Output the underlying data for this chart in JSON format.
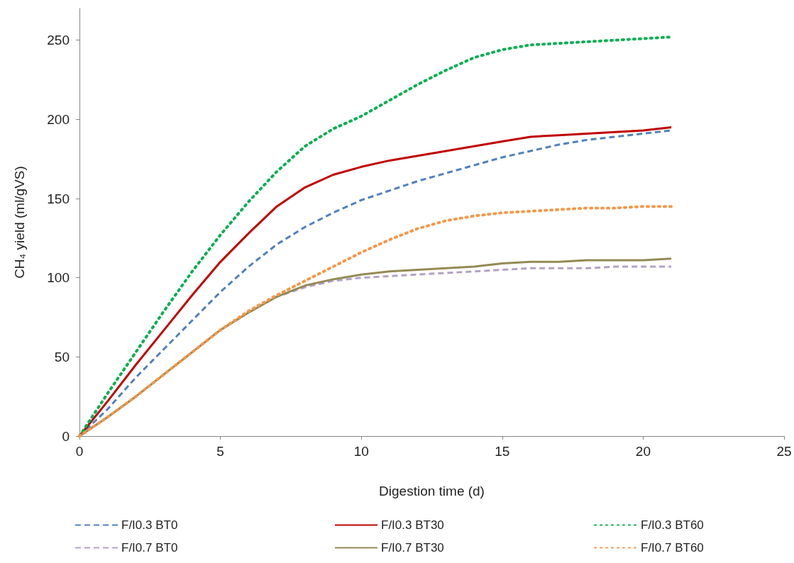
{
  "chart_data": {
    "type": "line",
    "xlabel": "Digestion time (d)",
    "ylabel": "CH₄ yield (ml/gVS)",
    "x": [
      0,
      1,
      2,
      3,
      4,
      5,
      6,
      7,
      8,
      9,
      10,
      11,
      12,
      13,
      14,
      15,
      16,
      17,
      18,
      19,
      20,
      21
    ],
    "xlim": [
      0,
      25
    ],
    "xticks": [
      0,
      5,
      10,
      15,
      20,
      25
    ],
    "ylim": [
      0,
      270
    ],
    "yticks": [
      0,
      50,
      100,
      150,
      200,
      250
    ],
    "grid": false,
    "legend": "bottom",
    "marker": "none",
    "series": [
      {
        "name": "F/I0.3 BT0",
        "color": "#4f81bd",
        "line_style": "dashed",
        "values": [
          0,
          17,
          37,
          55,
          73,
          91,
          107,
          121,
          132,
          141,
          149,
          155,
          161,
          166,
          171,
          176,
          180,
          184,
          187,
          189,
          191,
          193
        ]
      },
      {
        "name": "F/I0.3 BT30",
        "color": "#c00000",
        "line_style": "solid",
        "values": [
          0,
          22,
          45,
          67,
          89,
          110,
          128,
          145,
          157,
          165,
          170,
          174,
          177,
          180,
          183,
          186,
          189,
          190,
          191,
          192,
          193,
          195
        ]
      },
      {
        "name": "F/I0.3 BT60",
        "color": "#00b050",
        "line_style": "dotted",
        "values": [
          0,
          27,
          53,
          79,
          104,
          127,
          148,
          167,
          183,
          194,
          202,
          212,
          222,
          231,
          239,
          244,
          247,
          248,
          249,
          250,
          251,
          252
        ]
      },
      {
        "name": "F/I0.7 BT0",
        "color": "#b3a2c7",
        "line_style": "dashed",
        "values": [
          0,
          12,
          25,
          39,
          53,
          67,
          78,
          88,
          94,
          98,
          100,
          101,
          102,
          103,
          104,
          105,
          106,
          106,
          106,
          107,
          107,
          107
        ]
      },
      {
        "name": "F/I0.7 BT30",
        "color": "#948a54",
        "line_style": "solid",
        "values": [
          0,
          12,
          25,
          39,
          53,
          67,
          78,
          88,
          95,
          99,
          102,
          104,
          105,
          106,
          107,
          109,
          110,
          110,
          111,
          111,
          111,
          112
        ]
      },
      {
        "name": "F/I0.7 BT60",
        "color": "#f79646",
        "line_style": "dotted",
        "values": [
          0,
          12,
          25,
          39,
          53,
          67,
          79,
          89,
          98,
          107,
          116,
          124,
          131,
          136,
          139,
          141,
          142,
          143,
          144,
          144,
          145,
          145
        ]
      }
    ]
  }
}
